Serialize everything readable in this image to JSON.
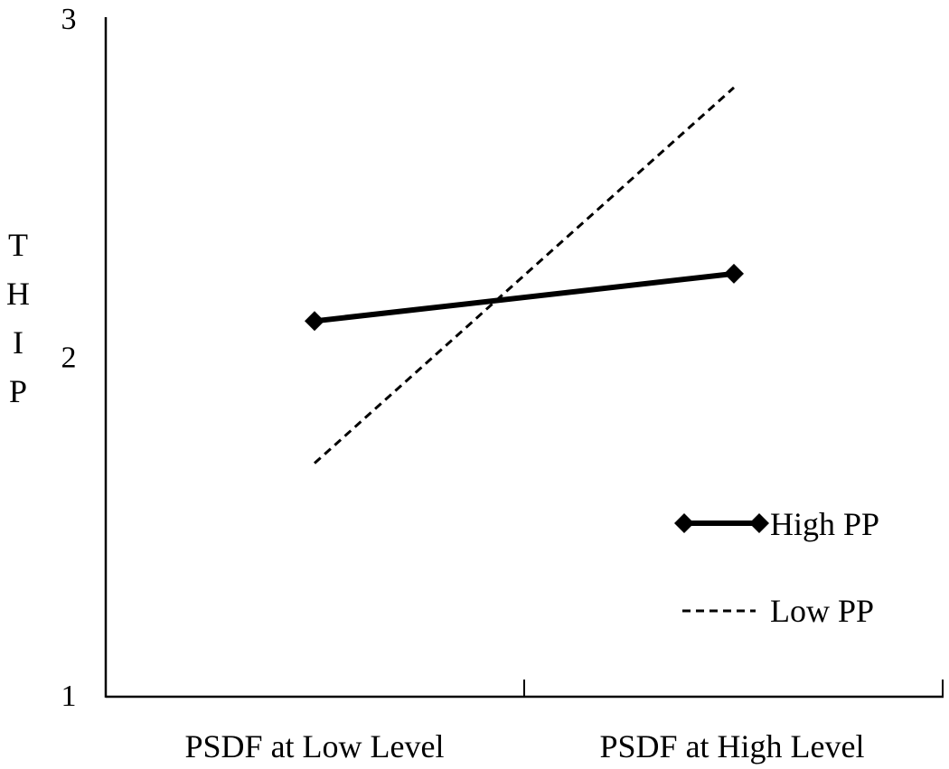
{
  "chart_data": {
    "type": "line",
    "title": "",
    "xlabel": "",
    "ylabel": "THIP",
    "categories": [
      "PSDF at Low Level",
      "PSDF at High Level"
    ],
    "yticks": [
      "1",
      "2",
      "3"
    ],
    "ylim": [
      1,
      3
    ],
    "grid": false,
    "legend_position": "bottom-right",
    "series": [
      {
        "name": "High PP",
        "values": [
          2.11,
          2.25
        ],
        "style": "solid",
        "marker": "diamond",
        "color": "#000000"
      },
      {
        "name": "Low PP",
        "values": [
          1.69,
          2.8
        ],
        "style": "dashed",
        "marker": "none",
        "color": "#000000"
      }
    ]
  }
}
